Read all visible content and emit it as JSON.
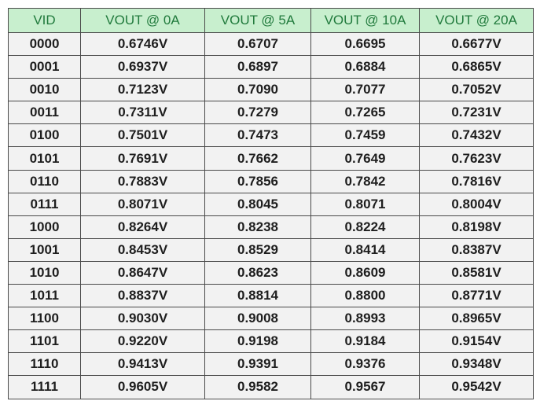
{
  "table": {
    "header": [
      "VID",
      "VOUT @ 0A",
      "VOUT @ 5A",
      "VOUT @ 10A",
      "VOUT @ 20A"
    ],
    "rows": [
      [
        "0000",
        "0.6746V",
        "0.6707",
        "0.6695",
        "0.6677V"
      ],
      [
        "0001",
        "0.6937V",
        "0.6897",
        "0.6884",
        "0.6865V"
      ],
      [
        "0010",
        "0.7123V",
        "0.7090",
        "0.7077",
        "0.7052V"
      ],
      [
        "0011",
        "0.7311V",
        "0.7279",
        "0.7265",
        "0.7231V"
      ],
      [
        "0100",
        "0.7501V",
        "0.7473",
        "0.7459",
        "0.7432V"
      ],
      [
        "0101",
        "0.7691V",
        "0.7662",
        "0.7649",
        "0.7623V"
      ],
      [
        "0110",
        "0.7883V",
        "0.7856",
        "0.7842",
        "0.7816V"
      ],
      [
        "0111",
        "0.8071V",
        "0.8045",
        "0.8071",
        "0.8004V"
      ],
      [
        "1000",
        "0.8264V",
        "0.8238",
        "0.8224",
        "0.8198V"
      ],
      [
        "1001",
        "0.8453V",
        "0.8529",
        "0.8414",
        "0.8387V"
      ],
      [
        "1010",
        "0.8647V",
        "0.8623",
        "0.8609",
        "0.8581V"
      ],
      [
        "1011",
        "0.8837V",
        "0.8814",
        "0.8800",
        "0.8771V"
      ],
      [
        "1100",
        "0.9030V",
        "0.9008",
        "0.8993",
        "0.8965V"
      ],
      [
        "1101",
        "0.9220V",
        "0.9198",
        "0.9184",
        "0.9154V"
      ],
      [
        "1110",
        "0.9413V",
        "0.9391",
        "0.9376",
        "0.9348V"
      ],
      [
        "1111",
        "0.9605V",
        "0.9582",
        "0.9567",
        "0.9542V"
      ]
    ]
  }
}
